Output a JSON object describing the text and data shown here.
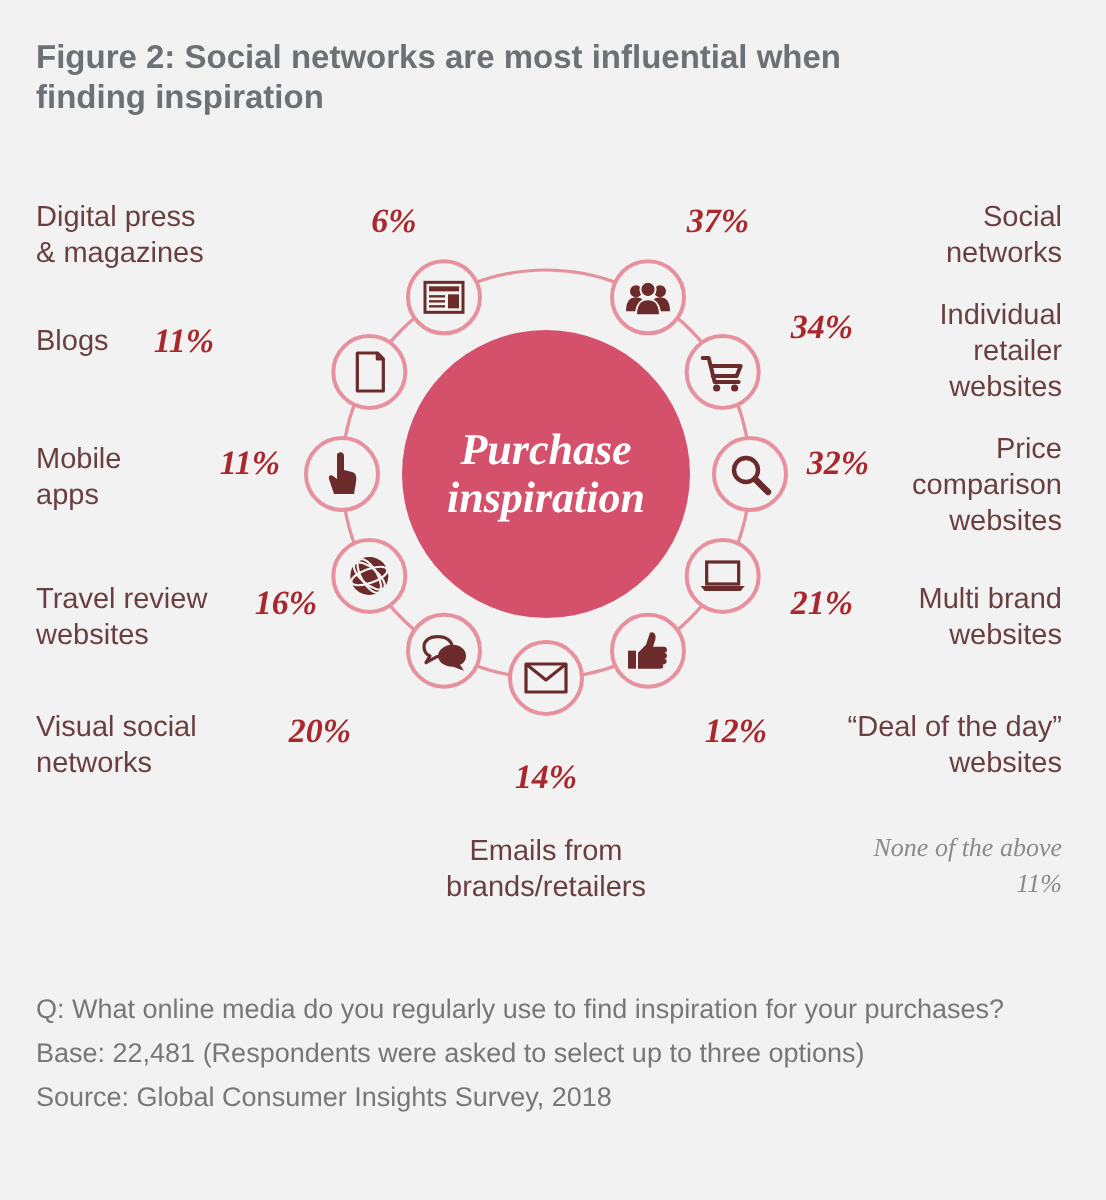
{
  "chart_data": {
    "type": "other",
    "title": "Figure 2: Social networks are most influential when finding inspiration",
    "categories": [
      "Social networks",
      "Individual retailer websites",
      "Price comparison websites",
      "Multi brand websites",
      "“Deal of the day” websites",
      "Emails from brands/retailers",
      "Visual social networks",
      "Travel review websites",
      "Mobile apps",
      "Blogs",
      "Digital press & magazines"
    ],
    "values": [
      37,
      34,
      32,
      21,
      12,
      14,
      20,
      16,
      11,
      11,
      6
    ],
    "value_labels": [
      "37%",
      "34%",
      "32%",
      "21%",
      "12%",
      "14%",
      "20%",
      "16%",
      "11%",
      "11%",
      "6%"
    ],
    "annotations": [
      "Purchase inspiration",
      "None of the above 11%",
      "Q: What online media do you regularly use to find inspiration for your purchases?",
      "Base: 22,481 (Respondents were asked to select up to three options)",
      "Source: Global Consumer Insights Survey, 2018"
    ]
  }
}
